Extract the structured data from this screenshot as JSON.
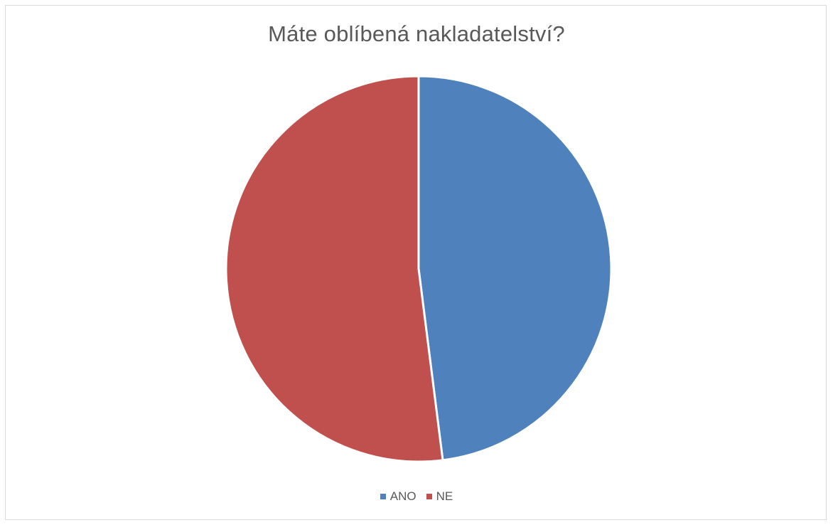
{
  "chart_data": {
    "type": "pie",
    "title": "Máte oblíbená nakladatelství?",
    "slices": [
      {
        "label": "ANO",
        "value": 48,
        "color": "#4f81bd"
      },
      {
        "label": "NE",
        "value": 52,
        "color": "#c0504d"
      }
    ],
    "start_angle_deg": 0,
    "direction": "clockwise",
    "legend_position": "bottom"
  }
}
